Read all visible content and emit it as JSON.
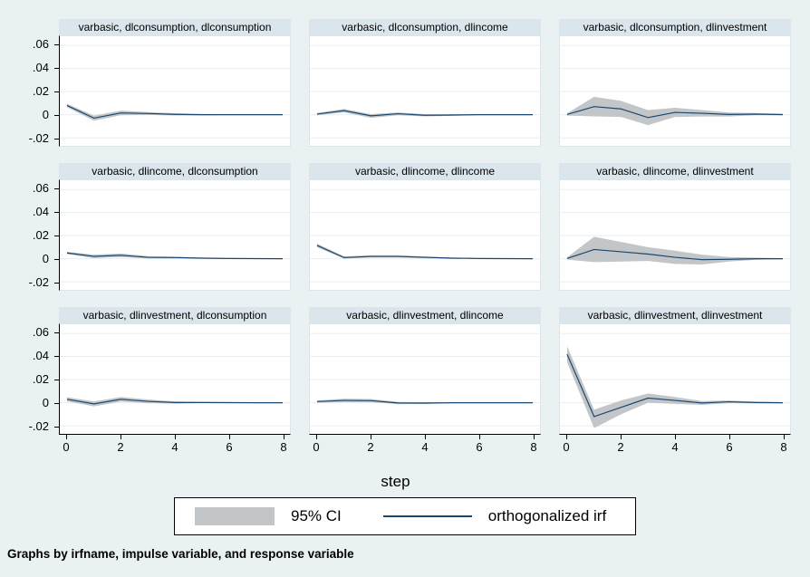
{
  "x_axis": {
    "title": "step",
    "ticks": [
      "0",
      "2",
      "4",
      "6",
      "8"
    ],
    "tick_values": [
      0,
      2,
      4,
      6,
      8
    ]
  },
  "y_axis": {
    "ticks": [
      ".06",
      ".04",
      ".02",
      "0",
      "-.02"
    ],
    "tick_values": [
      0.06,
      0.04,
      0.02,
      0,
      -0.02
    ]
  },
  "legend": {
    "ci_label": "95% CI",
    "irf_label": "orthogonalized irf"
  },
  "note": "Graphs by irfname, impulse variable, and response variable",
  "colors": {
    "background": "#eaf1f3",
    "strip": "#dae5ec",
    "plot_background": "#ffffff",
    "gridline": "#e8eef1",
    "ci_band": "#c3c6c8",
    "irf_line": "#1a476f",
    "axis": "#000000"
  },
  "chart_data": {
    "type": "line",
    "layout": "3x3 small multiples (graphs by irfname, impulse, response)",
    "x": [
      0,
      1,
      2,
      3,
      4,
      5,
      6,
      7,
      8
    ],
    "xlim": [
      0,
      8
    ],
    "ylim": [
      -0.027,
      0.068
    ],
    "grid": true,
    "series_meta": [
      "95% CI band",
      "orthogonalized irf line"
    ],
    "panels": [
      {
        "title": "varbasic, dlconsumption, dlconsumption",
        "irf": [
          0.008,
          -0.003,
          0.0015,
          0.001,
          0.0003,
          0,
          0,
          0,
          0
        ],
        "ci_upper": [
          0.0095,
          -0.0008,
          0.0035,
          0.0022,
          0.0013,
          0.0006,
          0.0003,
          0.0002,
          0.0001
        ],
        "ci_lower": [
          0.0065,
          -0.0052,
          -0.0005,
          -0.0002,
          -0.0007,
          -0.0006,
          -0.0003,
          -0.0002,
          -0.0001
        ]
      },
      {
        "title": "varbasic, dlconsumption, dlincome",
        "irf": [
          0.0005,
          0.0035,
          -0.001,
          0.0008,
          -0.0005,
          -0.0003,
          0,
          0,
          0
        ],
        "ci_upper": [
          0.0015,
          0.005,
          0.0005,
          0.002,
          0.0005,
          0.0004,
          0.0003,
          0.0002,
          0.0001
        ],
        "ci_lower": [
          -0.0005,
          0.002,
          -0.0028,
          -0.0005,
          -0.0015,
          -0.001,
          -0.0003,
          -0.0002,
          -0.0001
        ]
      },
      {
        "title": "varbasic, dlconsumption, dlinvestment",
        "irf": [
          0.0002,
          0.007,
          0.005,
          -0.0025,
          0.002,
          0.0012,
          0.0002,
          0.0005,
          0.0001
        ],
        "ci_upper": [
          0.0012,
          0.0155,
          0.012,
          0.004,
          0.006,
          0.004,
          0.002,
          0.0015,
          0.0008
        ],
        "ci_lower": [
          -0.0008,
          -0.0015,
          -0.002,
          -0.009,
          -0.002,
          -0.0016,
          -0.0016,
          -0.0005,
          -0.0006
        ]
      },
      {
        "title": "varbasic, dlincome, dlconsumption",
        "irf": [
          0.005,
          0.002,
          0.003,
          0.0012,
          0.001,
          0.0005,
          0.0002,
          0.0001,
          0
        ],
        "ci_upper": [
          0.006,
          0.0035,
          0.0045,
          0.0022,
          0.0018,
          0.001,
          0.0006,
          0.0004,
          0.0002
        ],
        "ci_lower": [
          0.004,
          0.0005,
          0.0015,
          0.0002,
          0.0002,
          0,
          -0.0002,
          -0.0002,
          -0.0002
        ]
      },
      {
        "title": "varbasic, dlincome, dlincome",
        "irf": [
          0.0115,
          0.001,
          0.002,
          0.002,
          0.0012,
          0.0005,
          0.0002,
          0.0001,
          0
        ],
        "ci_upper": [
          0.013,
          0.002,
          0.003,
          0.003,
          0.002,
          0.001,
          0.0005,
          0.0003,
          0.0002
        ],
        "ci_lower": [
          0.01,
          0,
          0.001,
          0.001,
          0.0004,
          0,
          -0.0001,
          -0.0001,
          -0.0002
        ]
      },
      {
        "title": "varbasic, dlincome, dlinvestment",
        "irf": [
          0.0002,
          0.008,
          0.006,
          0.004,
          0.0012,
          -0.0008,
          -0.0005,
          0,
          0
        ],
        "ci_upper": [
          0.0012,
          0.019,
          0.0145,
          0.01,
          0.007,
          0.0035,
          0.0015,
          0.001,
          0.0005
        ],
        "ci_lower": [
          -0.0008,
          -0.003,
          -0.0025,
          -0.002,
          -0.0045,
          -0.005,
          -0.0025,
          -0.001,
          -0.0005
        ]
      },
      {
        "title": "varbasic, dlinvestment, dlconsumption",
        "irf": [
          0.003,
          -0.001,
          0.003,
          0.0012,
          0.0002,
          0.0002,
          0.0001,
          0,
          0
        ],
        "ci_upper": [
          0.0048,
          0.0012,
          0.005,
          0.0028,
          0.0012,
          0.0008,
          0.0006,
          0.0002,
          0.0001
        ],
        "ci_lower": [
          0.0012,
          -0.0032,
          0.001,
          -0.0004,
          -0.0008,
          -0.0004,
          -0.0004,
          -0.0002,
          -0.0001
        ]
      },
      {
        "title": "varbasic, dlinvestment, dlincome",
        "irf": [
          0.001,
          0.002,
          0.0018,
          -0.0002,
          -0.0003,
          0,
          0,
          0,
          0
        ],
        "ci_upper": [
          0.002,
          0.0035,
          0.0032,
          0.0008,
          0.0005,
          0.0003,
          0.0002,
          0.0001,
          0
        ],
        "ci_lower": [
          0,
          0.0005,
          0.0004,
          -0.0012,
          -0.0011,
          -0.0003,
          -0.0002,
          -0.0001,
          0
        ]
      },
      {
        "title": "varbasic, dlinvestment, dlinvestment",
        "irf": [
          0.042,
          -0.012,
          -0.004,
          0.004,
          0.002,
          -0.0002,
          0.0008,
          0.0002,
          0
        ],
        "ci_upper": [
          0.049,
          -0.006,
          0.002,
          0.008,
          0.005,
          0.0015,
          0.002,
          0.001,
          0.0005
        ],
        "ci_lower": [
          0.035,
          -0.022,
          -0.01,
          0,
          -0.001,
          -0.0019,
          -0.0004,
          -0.0006,
          -0.0005
        ]
      }
    ]
  }
}
